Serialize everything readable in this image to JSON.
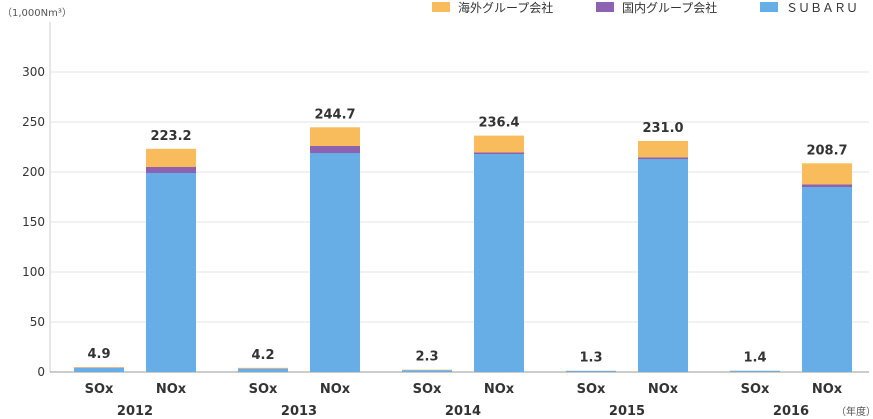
{
  "chart_data": {
    "type": "bar",
    "stacked": true,
    "unit_label": "（1,000Nm³）",
    "year_suffix_label": "（年度）",
    "ylim": [
      0,
      350
    ],
    "yticks": [
      0,
      50,
      100,
      150,
      200,
      250,
      300
    ],
    "legend_position": "top-right",
    "series": [
      {
        "name": "ＳＵＢＡＲＵ",
        "color": "#68aee6"
      },
      {
        "name": "国内グループ会社",
        "color": "#8e62b0"
      },
      {
        "name": "海外グループ会社",
        "color": "#f9bc5c"
      }
    ],
    "groups": [
      {
        "year": "2012",
        "bars": [
          {
            "label": "SOx",
            "total": "4.9",
            "values": [
              4.0,
              0.3,
              0.6
            ]
          },
          {
            "label": "NOx",
            "total": "223.2",
            "values": [
              199.0,
              6.0,
              18.2
            ]
          }
        ]
      },
      {
        "year": "2013",
        "bars": [
          {
            "label": "SOx",
            "total": "4.2",
            "values": [
              3.3,
              0.3,
              0.6
            ]
          },
          {
            "label": "NOx",
            "total": "244.7",
            "values": [
              219.0,
              7.0,
              18.7
            ]
          }
        ]
      },
      {
        "year": "2014",
        "bars": [
          {
            "label": "SOx",
            "total": "2.3",
            "values": [
              1.8,
              0.1,
              0.4
            ]
          },
          {
            "label": "NOx",
            "total": "236.4",
            "values": [
              218.0,
              1.5,
              16.9
            ]
          }
        ]
      },
      {
        "year": "2015",
        "bars": [
          {
            "label": "SOx",
            "total": "1.3",
            "values": [
              1.0,
              0.1,
              0.2
            ]
          },
          {
            "label": "NOx",
            "total": "231.0",
            "values": [
              213.0,
              1.5,
              16.5
            ]
          }
        ]
      },
      {
        "year": "2016",
        "bars": [
          {
            "label": "SOx",
            "total": "1.4",
            "values": [
              1.1,
              0.1,
              0.2
            ]
          },
          {
            "label": "NOx",
            "total": "208.7",
            "values": [
              185.0,
              2.5,
              21.2
            ]
          }
        ]
      }
    ]
  }
}
